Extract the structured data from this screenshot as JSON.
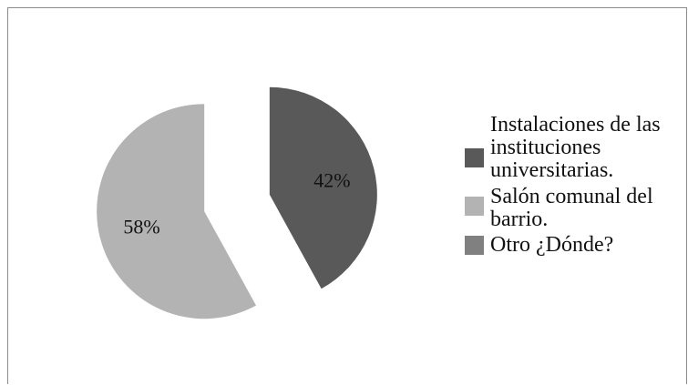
{
  "chart_data": {
    "type": "pie",
    "categories": [
      "Instalaciones de las instituciones universitarias.",
      "Salón comunal del barrio.",
      "Otro ¿Dónde?"
    ],
    "values": [
      42,
      58,
      0
    ],
    "data_labels": [
      "42%",
      "58%",
      ""
    ],
    "colors": [
      "#595959",
      "#b3b3b3",
      "#808080"
    ],
    "exploded": true,
    "legend_position": "right",
    "title": ""
  }
}
